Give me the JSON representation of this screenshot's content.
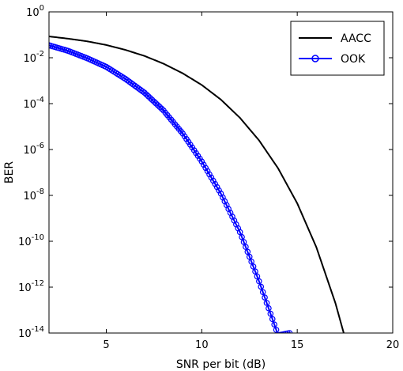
{
  "chart_data": {
    "type": "line",
    "title": "",
    "xlabel": "SNR per bit (dB)",
    "ylabel": "BER",
    "xlim": [
      2,
      20
    ],
    "ylim": [
      1e-14,
      1
    ],
    "yscale": "log",
    "grid": false,
    "legend_position": "top-right",
    "x_ticks": [
      5,
      10,
      15,
      20
    ],
    "y_ticks": [
      {
        "exp": "0",
        "value": 1
      },
      {
        "exp": "-2",
        "value": 0.01
      },
      {
        "exp": "-4",
        "value": 0.0001
      },
      {
        "exp": "-6",
        "value": 1e-06
      },
      {
        "exp": "-8",
        "value": 1e-08
      },
      {
        "exp": "-10",
        "value": 1e-10
      },
      {
        "exp": "-12",
        "value": 1e-12
      },
      {
        "exp": "-14",
        "value": 1e-14
      }
    ],
    "y_tick_base": "10",
    "series": [
      {
        "name": "AACC",
        "color": "#000000",
        "marker": "none",
        "x": [
          2,
          3,
          4,
          5,
          6,
          7,
          8,
          9,
          10,
          11,
          12,
          13,
          14,
          15,
          16,
          17,
          18,
          18.6
        ],
        "y": [
          0.085,
          0.068,
          0.052,
          0.036,
          0.022,
          0.012,
          0.0055,
          0.0021,
          0.00065,
          0.00015,
          2.4e-05,
          2.5e-06,
          1.5e-07,
          4.5e-09,
          5.5e-11,
          2e-13,
          2e-16,
          8e-15
        ]
      },
      {
        "name": "OOK",
        "color": "#0000ff",
        "marker": "circle",
        "x": [
          2,
          3,
          4,
          5,
          6,
          7,
          8,
          9,
          10,
          11,
          12,
          13,
          14,
          14.6
        ],
        "y": [
          0.035,
          0.02,
          0.0095,
          0.004,
          0.0012,
          0.0003,
          5e-05,
          5e-06,
          3e-07,
          1.2e-08,
          2.5e-10,
          1.8e-12,
          8e-15,
          1e-14
        ]
      }
    ]
  }
}
